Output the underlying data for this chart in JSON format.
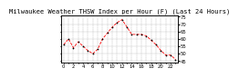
{
  "title": "Milwaukee Weather THSW Index per Hour (F) (Last 24 Hours)",
  "bg_color": "#ffffff",
  "plot_bg": "#ffffff",
  "line_color": "#ff0000",
  "marker_color": "#000000",
  "x_values": [
    0,
    1,
    2,
    3,
    4,
    5,
    6,
    7,
    8,
    9,
    10,
    11,
    12,
    13,
    14,
    15,
    16,
    17,
    18,
    19,
    20,
    21,
    22,
    23
  ],
  "y_values": [
    56,
    60,
    54,
    58,
    55,
    52,
    50,
    53,
    60,
    64,
    68,
    71,
    73,
    68,
    63,
    63,
    63,
    62,
    59,
    56,
    52,
    49,
    49,
    46
  ],
  "ylim": [
    44,
    76
  ],
  "yticks": [
    45,
    50,
    55,
    60,
    65,
    70,
    75
  ],
  "ytick_labels": [
    "45",
    "50",
    "55",
    "60",
    "65",
    "70",
    "75"
  ],
  "grid_color": "#aaaaaa",
  "title_fontsize": 5.0,
  "tick_fontsize": 3.8
}
